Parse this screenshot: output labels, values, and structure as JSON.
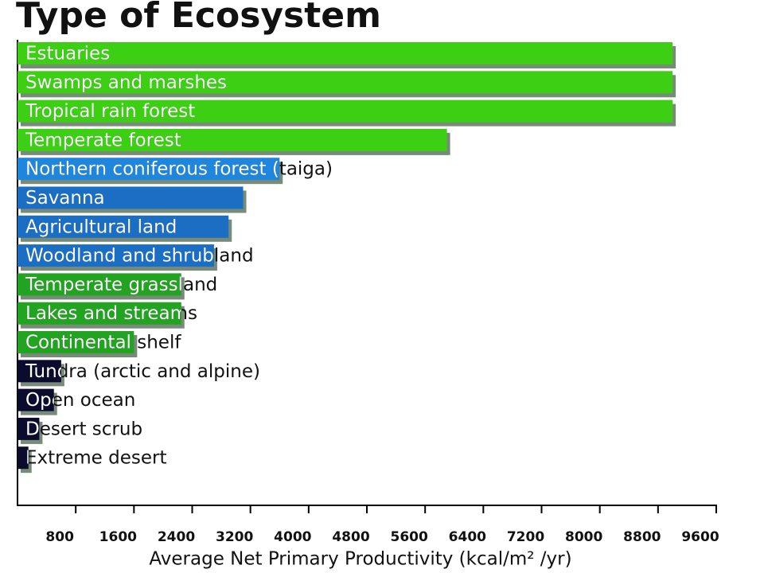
{
  "chart_data": {
    "type": "bar",
    "orientation": "horizontal",
    "title": "Type of Ecosystem",
    "x_label": "Average Net Primary Productivity (kcal/m² /yr)",
    "categories": [
      "Estuaries",
      "Swamps and marshes",
      "Tropical rain forest",
      "Temperate forest",
      "Northern coniferous forest (taiga)",
      "Savanna",
      "Agricultural land",
      "Woodland and shrubland",
      "Temperate grassland",
      "Lakes and streams",
      "Continental shelf",
      "Tundra (arctic and alpine)",
      "Open ocean",
      "Desert scrub",
      "Extreme desert"
    ],
    "values": [
      9000,
      9000,
      9000,
      5900,
      3600,
      3100,
      2900,
      2700,
      2250,
      2250,
      1600,
      600,
      500,
      300,
      150
    ],
    "colors": [
      "#3ccf14",
      "#3ccf14",
      "#3ccf14",
      "#3ccf14",
      "#1f86dd",
      "#1a6fc4",
      "#1a6fc4",
      "#1a6fc4",
      "#22a322",
      "#22a322",
      "#22a322",
      "#0b0b2e",
      "#0b0b2e",
      "#0b0b2e",
      "#0b0b2e"
    ],
    "xlim": [
      0,
      9600
    ],
    "xticks": [
      800,
      1600,
      2400,
      3200,
      4000,
      4800,
      5600,
      6400,
      7200,
      8000,
      8800,
      9600
    ]
  }
}
